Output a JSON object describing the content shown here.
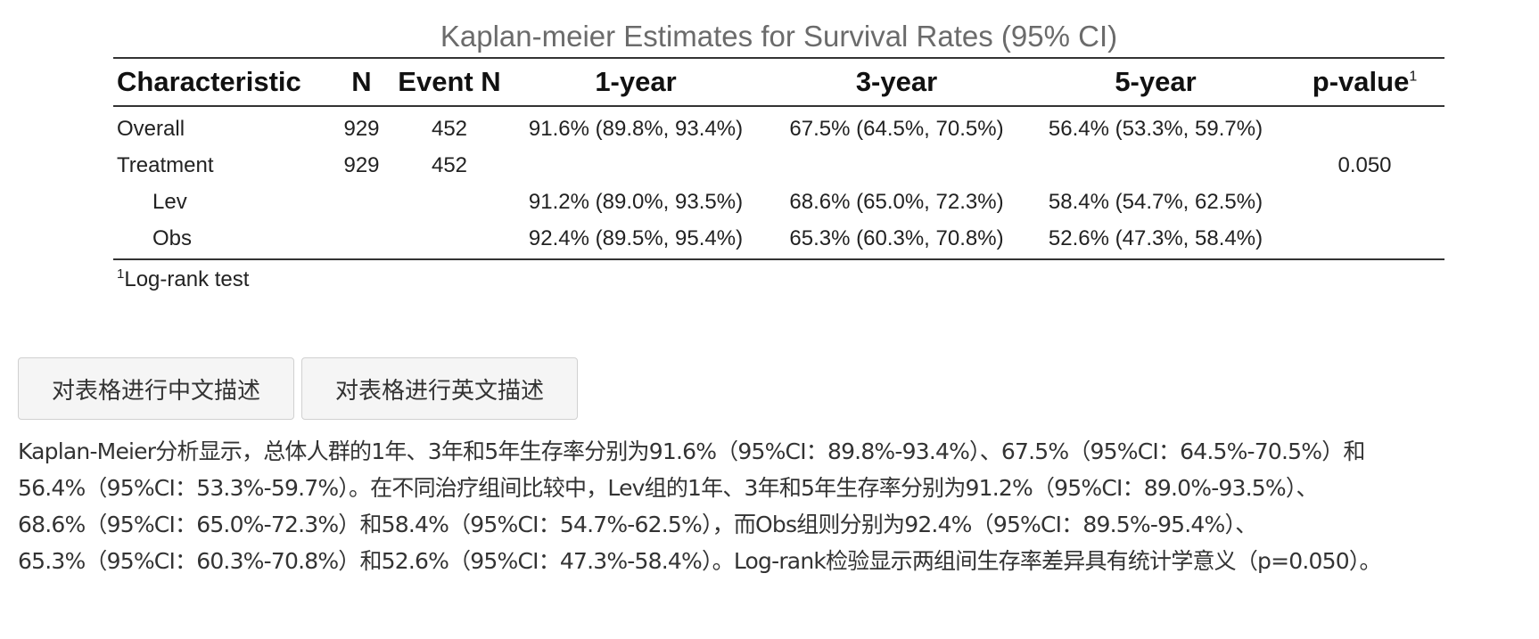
{
  "table": {
    "title": "Kaplan-meier Estimates for Survival Rates (95% CI)",
    "headers": {
      "characteristic": "Characteristic",
      "n": "N",
      "event_n": "Event N",
      "year1": "1-year",
      "year3": "3-year",
      "year5": "5-year",
      "pvalue": "p-value",
      "pvalue_footnote_mark": "1"
    },
    "rows": [
      {
        "label": "Overall",
        "n": "929",
        "event_n": "452",
        "year1": "91.6% (89.8%, 93.4%)",
        "year3": "67.5% (64.5%, 70.5%)",
        "year5": "56.4% (53.3%, 59.7%)",
        "pvalue": ""
      },
      {
        "label": "Treatment",
        "n": "929",
        "event_n": "452",
        "year1": "",
        "year3": "",
        "year5": "",
        "pvalue": "0.050"
      },
      {
        "label": "Lev",
        "n": "",
        "event_n": "",
        "year1": "91.2% (89.0%, 93.5%)",
        "year3": "68.6% (65.0%, 72.3%)",
        "year5": "58.4% (54.7%, 62.5%)",
        "pvalue": ""
      },
      {
        "label": "Obs",
        "n": "",
        "event_n": "",
        "year1": "92.4% (89.5%, 95.4%)",
        "year3": "65.3% (60.3%, 70.8%)",
        "year5": "52.6% (47.3%, 58.4%)",
        "pvalue": ""
      }
    ],
    "footnote_mark": "1",
    "footnote_text": "Log-rank test"
  },
  "buttons": {
    "chinese_desc": "对表格进行中文描述",
    "english_desc": "对表格进行英文描述"
  },
  "description": {
    "lines": [
      "Kaplan-Meier分析显示，总体人群的1年、3年和5年生存率分别为91.6%（95%CI：89.8%-93.4%）、67.5%（95%CI：64.5%-70.5%）和",
      "56.4%（95%CI：53.3%-59.7%）。在不同治疗组间比较中，Lev组的1年、3年和5年生存率分别为91.2%（95%CI：89.0%-93.5%）、",
      "68.6%（95%CI：65.0%-72.3%）和58.4%（95%CI：54.7%-62.5%），而Obs组则分别为92.4%（95%CI：89.5%-95.4%）、",
      "65.3%（95%CI：60.3%-70.8%）和52.6%（95%CI：47.3%-58.4%）。Log-rank检验显示两组间生存率差异具有统计学意义（p=0.050）。"
    ]
  }
}
